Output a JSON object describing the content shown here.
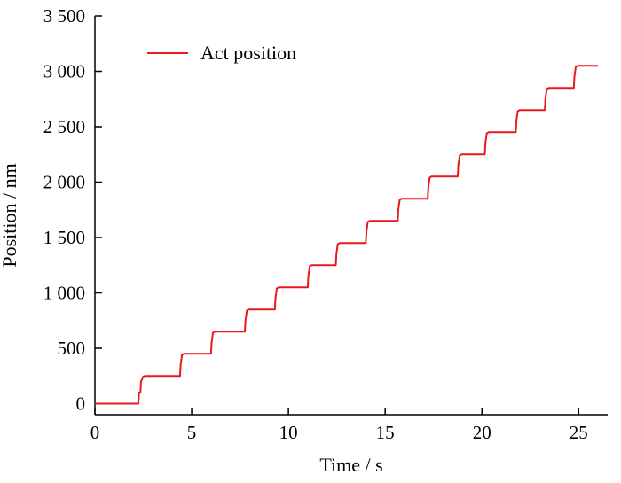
{
  "chart_data": {
    "type": "line",
    "xlabel": "Time / s",
    "ylabel": "Position / nm",
    "xlim": [
      0,
      26.5
    ],
    "ylim": [
      -100,
      3500
    ],
    "x_ticks": [
      0,
      5,
      10,
      15,
      20,
      25
    ],
    "x_tick_labels": [
      "0",
      "5",
      "10",
      "15",
      "20",
      "25"
    ],
    "y_ticks": [
      0,
      500,
      1000,
      1500,
      2000,
      2500,
      3000,
      3500
    ],
    "y_tick_labels": [
      "0",
      "500",
      "1 000",
      "1 500",
      "2 000",
      "2 500",
      "3 000",
      "3 500"
    ],
    "grid": false,
    "legend_position": "top-left",
    "series": [
      {
        "name": "Act position",
        "color": "#e8191c",
        "x": [
          0,
          2.25,
          2.28,
          2.35,
          2.38,
          2.5,
          2.6,
          4.4,
          4.43,
          4.5,
          4.6,
          6.0,
          6.03,
          6.1,
          6.2,
          7.75,
          7.78,
          7.85,
          7.95,
          9.3,
          9.33,
          9.4,
          9.5,
          11.0,
          11.03,
          11.1,
          11.2,
          12.45,
          12.48,
          12.55,
          12.65,
          14.0,
          14.03,
          14.1,
          14.2,
          15.65,
          15.68,
          15.75,
          15.85,
          17.2,
          17.23,
          17.3,
          17.4,
          18.75,
          18.78,
          18.85,
          18.95,
          20.15,
          20.18,
          20.25,
          20.35,
          21.75,
          21.78,
          21.85,
          21.95,
          23.25,
          23.28,
          23.35,
          23.45,
          24.75,
          24.78,
          24.85,
          24.95,
          26.0
        ],
        "y": [
          0,
          0,
          100,
          100,
          200,
          245,
          250,
          250,
          350,
          440,
          450,
          450,
          550,
          640,
          650,
          650,
          750,
          840,
          850,
          850,
          950,
          1040,
          1050,
          1050,
          1150,
          1240,
          1250,
          1250,
          1350,
          1440,
          1450,
          1450,
          1550,
          1640,
          1650,
          1650,
          1750,
          1840,
          1850,
          1850,
          1950,
          2040,
          2050,
          2050,
          2150,
          2240,
          2250,
          2250,
          2350,
          2440,
          2450,
          2450,
          2550,
          2640,
          2650,
          2650,
          2750,
          2840,
          2850,
          2850,
          2950,
          3040,
          3050,
          3050
        ]
      }
    ]
  }
}
